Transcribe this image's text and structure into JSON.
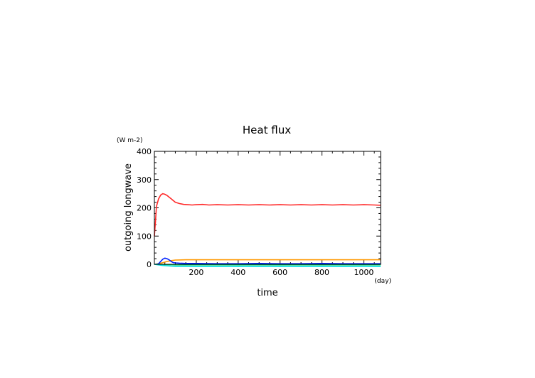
{
  "chart_data": {
    "type": "line",
    "title": "Heat flux",
    "xlabel": "time",
    "ylabel": "outgoing longwave",
    "x_unit": "(day)",
    "y_unit": "(W m-2)",
    "xlim": [
      0,
      1080
    ],
    "ylim": [
      0,
      400
    ],
    "x_ticks": [
      200,
      400,
      600,
      800,
      1000
    ],
    "y_ticks": [
      0,
      100,
      200,
      300,
      400
    ],
    "grid": false,
    "legend": "none",
    "series": [
      {
        "color": "#ff2a2a",
        "x": [
          0,
          5,
          10,
          20,
          30,
          40,
          50,
          60,
          70,
          80,
          90,
          100,
          120,
          140,
          160,
          180,
          200,
          230,
          260,
          300,
          350,
          400,
          450,
          500,
          550,
          600,
          650,
          700,
          750,
          800,
          850,
          900,
          950,
          1000,
          1050,
          1080
        ],
        "y": [
          100,
          150,
          205,
          232,
          245,
          250,
          248,
          244,
          238,
          232,
          226,
          220,
          215,
          212,
          211,
          210,
          211,
          212,
          210,
          211,
          210,
          211,
          210,
          211,
          210,
          211,
          210,
          211,
          210,
          211,
          210,
          211,
          210,
          211,
          210,
          209
        ]
      },
      {
        "color": "#ff9900",
        "x": [
          0,
          20,
          40,
          60,
          80,
          100,
          150,
          200,
          300,
          400,
          500,
          600,
          700,
          800,
          900,
          1000,
          1080
        ],
        "y": [
          0,
          2,
          6,
          10,
          13,
          15,
          16,
          16,
          16,
          16,
          16,
          16,
          16,
          16,
          16,
          16,
          16
        ]
      },
      {
        "color": "#0022ff",
        "x": [
          0,
          10,
          20,
          30,
          40,
          50,
          60,
          70,
          80,
          90,
          100,
          120,
          150,
          200,
          300,
          400,
          500,
          600,
          700,
          800,
          900,
          1000,
          1080
        ],
        "y": [
          0,
          0,
          2,
          10,
          18,
          22,
          20,
          16,
          10,
          6,
          5,
          4,
          3,
          3,
          2,
          2,
          3,
          2,
          2,
          3,
          2,
          2,
          2
        ]
      },
      {
        "color": "#00cc66",
        "x": [
          0,
          20,
          40,
          60,
          80,
          100,
          150,
          200,
          300,
          400,
          500,
          600,
          700,
          800,
          900,
          1000,
          1080
        ],
        "y": [
          0,
          0,
          0,
          -1,
          -1,
          -2,
          -2,
          -2,
          -2,
          -2,
          -2,
          -2,
          -2,
          -2,
          -2,
          -2,
          -2
        ]
      },
      {
        "color": "#00dddd",
        "x": [
          0,
          20,
          40,
          60,
          80,
          100,
          150,
          200,
          300,
          400,
          500,
          600,
          700,
          800,
          900,
          1000,
          1080
        ],
        "y": [
          0,
          -2,
          -4,
          -5,
          -6,
          -7,
          -7,
          -8,
          -8,
          -7,
          -8,
          -7,
          -8,
          -7,
          -8,
          -7,
          -8
        ]
      }
    ]
  }
}
